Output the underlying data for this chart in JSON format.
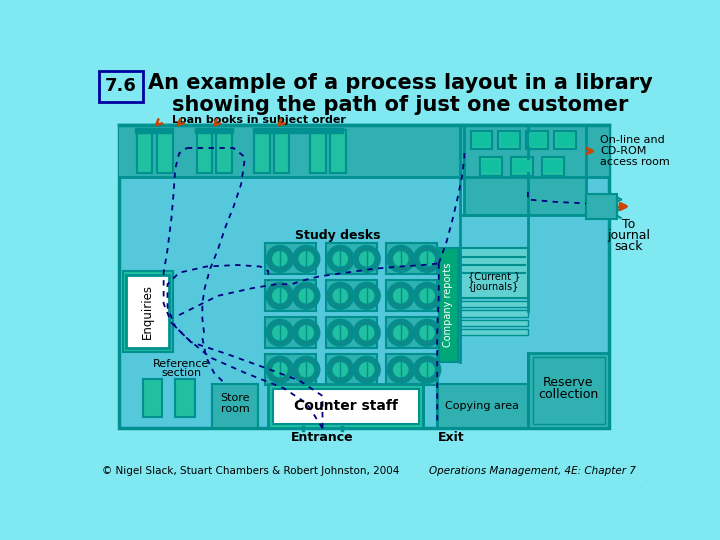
{
  "title1": "An example of a process layout in a library",
  "title2": "showing the path of just one customer",
  "figure_num": "7.6",
  "bg_outer": "#7FE8F0",
  "bg_border": "#0000A0",
  "bg_floor": "#55C8DC",
  "teal_dark": "#009090",
  "teal_fill": "#20C0A0",
  "teal_med": "#30B0B0",
  "teal_light": "#60D0D0",
  "white": "#FFFFFF",
  "black": "#000000",
  "orange": "#CC4400",
  "navy": "#000080",
  "path_color": "#000080",
  "footer_left": "© Nigel Slack, Stuart Chambers & Robert Johnston, 2004",
  "footer_right": "Operations Management, 4E: Chapter 7"
}
